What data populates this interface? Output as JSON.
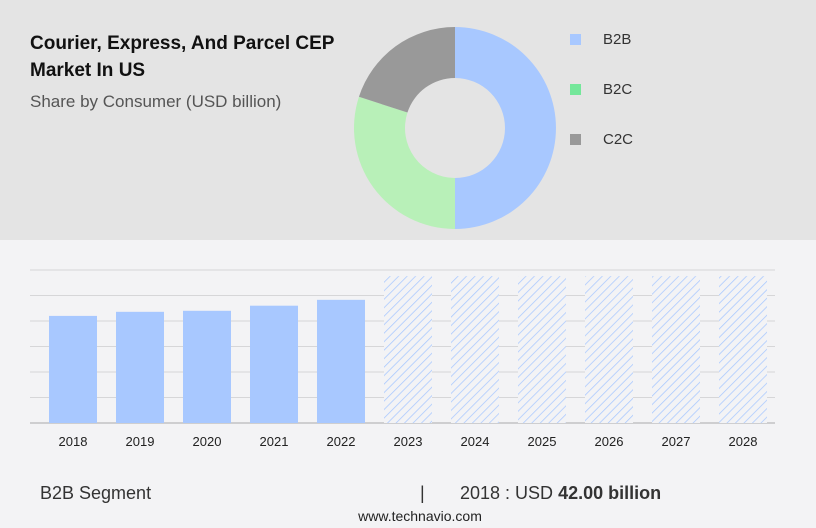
{
  "chart_data": [
    {
      "type": "pie",
      "title": "Courier, Express, And Parcel CEP Market In US",
      "subtitle": "Share by Consumer (USD billion)",
      "labels": [
        "B2B",
        "B2C",
        "C2C"
      ],
      "values": [
        50,
        30,
        20
      ],
      "colors": [
        "#a8c8ff",
        "#b8f0b8",
        "#999999"
      ],
      "legend_colors": [
        "#a8c8ff",
        "#74e79a",
        "#999999"
      ],
      "donut": true,
      "legend": "right"
    },
    {
      "type": "bar",
      "categories": [
        "2018",
        "2019",
        "2020",
        "2021",
        "2022",
        "2023",
        "2024",
        "2025",
        "2026",
        "2027",
        "2028"
      ],
      "values": [
        42.0,
        43.6,
        44.0,
        46.0,
        48.3,
        null,
        null,
        null,
        null,
        null,
        null
      ],
      "forecast": [
        "2023",
        "2024",
        "2025",
        "2026",
        "2027",
        "2028"
      ],
      "ylim": [
        0,
        60
      ],
      "grid": true,
      "color": "#a8c8ff"
    }
  ],
  "footer": {
    "segment": "B2B Segment",
    "sep": "|",
    "year_label": "2018 : USD",
    "value": "42.00 billion",
    "site": "www.technavio.com"
  }
}
